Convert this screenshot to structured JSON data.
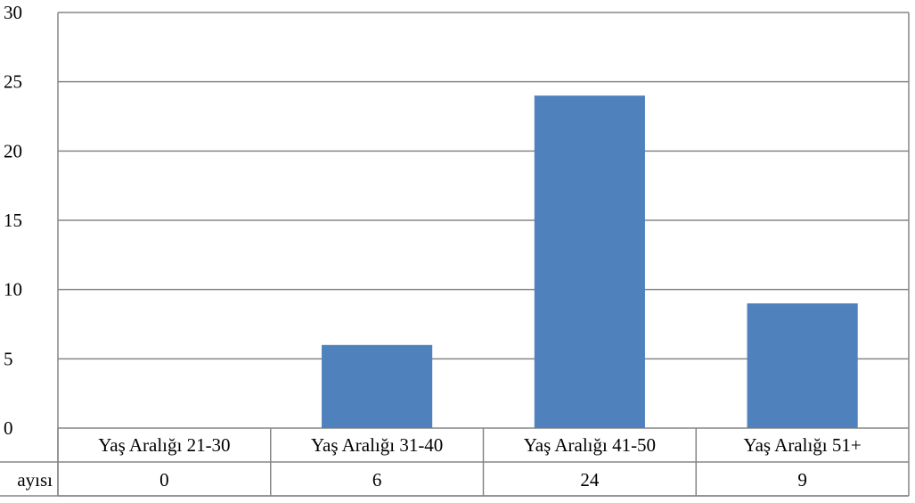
{
  "chart_data": {
    "type": "bar",
    "categories": [
      "Yaş Aralığı 21-30",
      "Yaş Aralığı 31-40",
      "Yaş Aralığı 41-50",
      "Yaş Aralığı 51+"
    ],
    "series": [
      {
        "name": "ayısı",
        "values": [
          0,
          6,
          24,
          9
        ],
        "color": "#4f81bd"
      }
    ],
    "ylim": [
      0,
      30
    ],
    "yticks": [
      0,
      5,
      10,
      15,
      20,
      25,
      30
    ],
    "grid": true,
    "data_table": true
  }
}
